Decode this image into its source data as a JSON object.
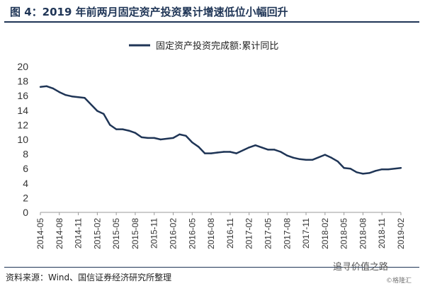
{
  "header": {
    "title": "图 4：2019 年前两月固定资产投资累计增速低位小幅回升"
  },
  "footer": {
    "source": "资料来源：Wind、国信证券经济研究所整理",
    "watermark": "追寻价值之路",
    "watermark_sub": "©格隆汇"
  },
  "colors": {
    "series": "#1f3556",
    "title": "#1f3556",
    "axis": "#999999"
  },
  "chart_data": {
    "type": "line",
    "title": "",
    "xlabel": "",
    "ylabel": "",
    "ylim": [
      0,
      20
    ],
    "yticks": [
      0,
      2,
      4,
      6,
      8,
      10,
      12,
      14,
      16,
      18,
      20
    ],
    "grid": false,
    "legend_position": "top-center",
    "x_tick_labels": [
      "2014-05",
      "2014-08",
      "2014-11",
      "2015-02",
      "2015-05",
      "2015-08",
      "2015-11",
      "2016-02",
      "2016-05",
      "2016-08",
      "2016-11",
      "2017-02",
      "2017-05",
      "2017-08",
      "2017-11",
      "2018-02",
      "2018-05",
      "2018-08",
      "2018-11",
      "2019-02"
    ],
    "series": [
      {
        "name": "固定资产投资完成额:累计同比",
        "x": [
          "2014-05",
          "2014-06",
          "2014-07",
          "2014-08",
          "2014-09",
          "2014-10",
          "2014-11",
          "2014-12",
          "2015-02",
          "2015-03",
          "2015-04",
          "2015-05",
          "2015-06",
          "2015-07",
          "2015-08",
          "2015-09",
          "2015-10",
          "2015-11",
          "2015-12",
          "2016-02",
          "2016-03",
          "2016-04",
          "2016-05",
          "2016-06",
          "2016-07",
          "2016-08",
          "2016-09",
          "2016-10",
          "2016-11",
          "2016-12",
          "2017-02",
          "2017-03",
          "2017-04",
          "2017-05",
          "2017-06",
          "2017-07",
          "2017-08",
          "2017-09",
          "2017-10",
          "2017-11",
          "2017-12",
          "2018-02",
          "2018-03",
          "2018-04",
          "2018-05",
          "2018-06",
          "2018-07",
          "2018-08",
          "2018-09",
          "2018-10",
          "2018-11",
          "2018-12",
          "2019-02"
        ],
        "values": [
          17.2,
          17.3,
          17.0,
          16.5,
          16.1,
          15.9,
          15.8,
          15.7,
          13.9,
          13.5,
          12.0,
          11.4,
          11.4,
          11.2,
          10.9,
          10.3,
          10.2,
          10.2,
          10.0,
          10.2,
          10.7,
          10.5,
          9.6,
          9.0,
          8.1,
          8.1,
          8.2,
          8.3,
          8.3,
          8.1,
          8.9,
          9.2,
          8.9,
          8.6,
          8.6,
          8.3,
          7.8,
          7.5,
          7.3,
          7.2,
          7.2,
          7.9,
          7.5,
          7.0,
          6.1,
          6.0,
          5.5,
          5.3,
          5.4,
          5.7,
          5.9,
          5.9,
          6.1
        ]
      }
    ]
  }
}
